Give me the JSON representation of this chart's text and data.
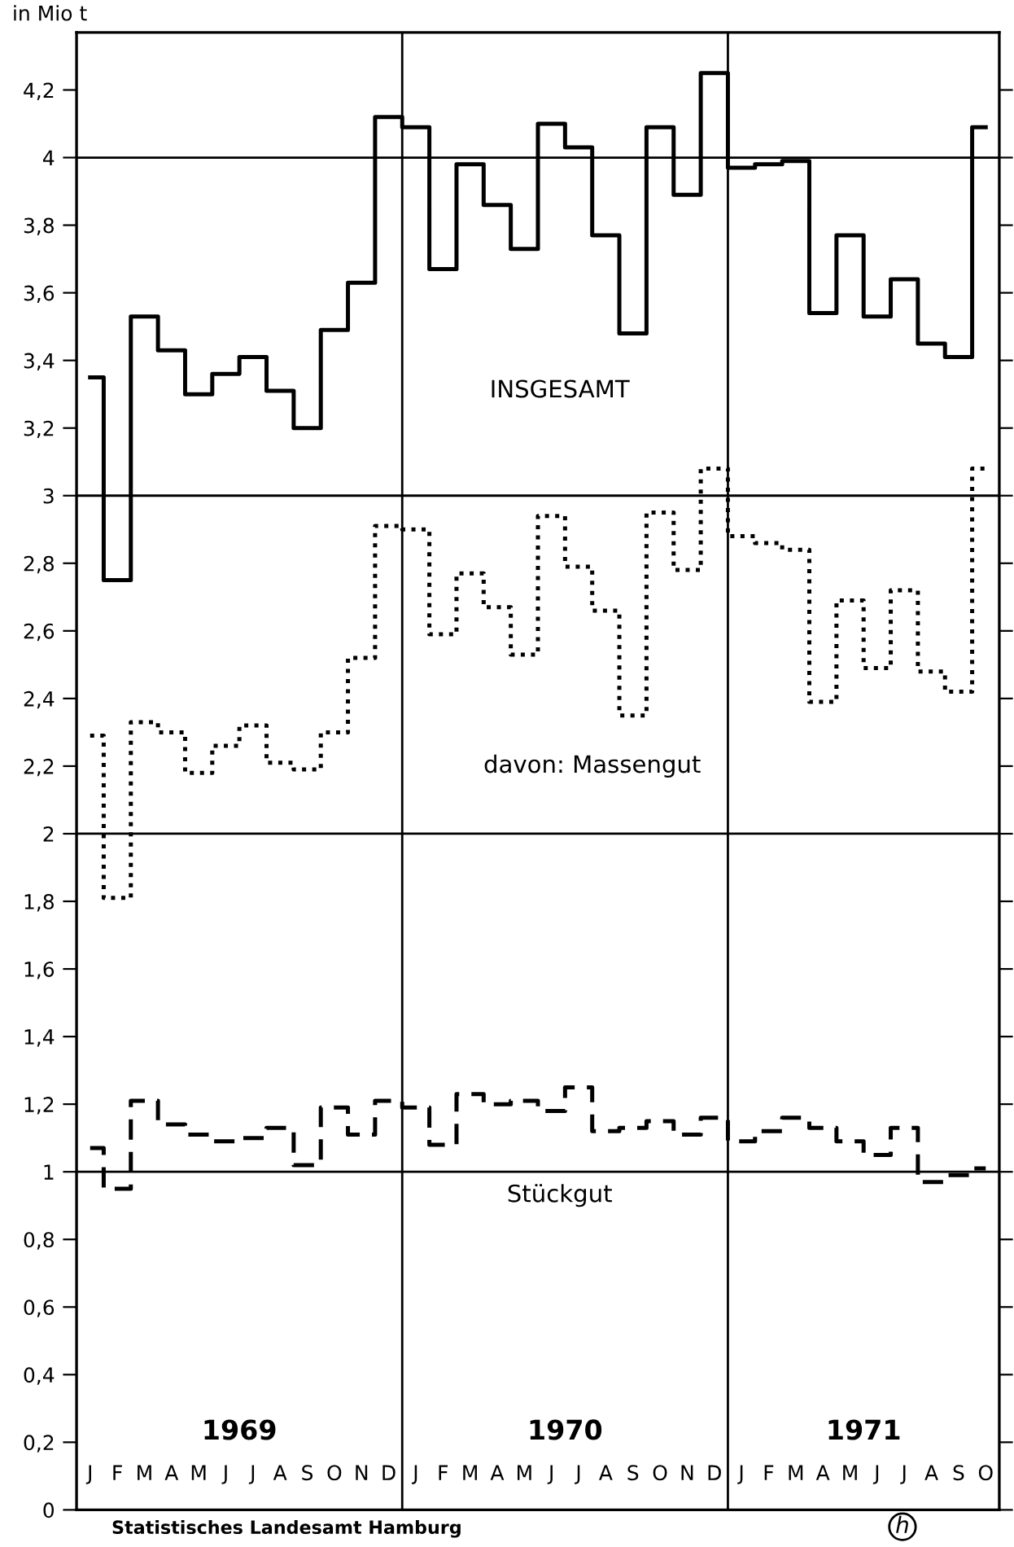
{
  "chart_data": {
    "type": "step",
    "ylabel": "in Mio t",
    "categories": [
      "J",
      "F",
      "M",
      "A",
      "M",
      "J",
      "J",
      "A",
      "S",
      "O",
      "N",
      "D",
      "J",
      "F",
      "M",
      "A",
      "M",
      "J",
      "J",
      "A",
      "S",
      "O",
      "N",
      "D",
      "J",
      "F",
      "M",
      "A",
      "M",
      "J",
      "J",
      "A",
      "S",
      "O"
    ],
    "ylim": [
      0,
      4.37
    ],
    "yticks": [
      0,
      {
        "value": 0.2,
        "label": "0,2"
      },
      {
        "value": 0.4,
        "label": "0,4"
      },
      {
        "value": 0.6,
        "label": "0,6"
      },
      {
        "value": 0.8,
        "label": "0,8"
      },
      1,
      {
        "value": 1.2,
        "label": "1,2"
      },
      {
        "value": 1.4,
        "label": "1,4"
      },
      {
        "value": 1.6,
        "label": "1,6"
      },
      {
        "value": 1.8,
        "label": "1,8"
      },
      2,
      {
        "value": 2.2,
        "label": "2,2"
      },
      {
        "value": 2.4,
        "label": "2,4"
      },
      {
        "value": 2.6,
        "label": "2,6"
      },
      {
        "value": 2.8,
        "label": "2,8"
      },
      3,
      {
        "value": 3.2,
        "label": "3,2"
      },
      {
        "value": 3.4,
        "label": "3,4"
      },
      {
        "value": 3.6,
        "label": "3,6"
      },
      {
        "value": 3.8,
        "label": "3,8"
      },
      4,
      {
        "value": 4.2,
        "label": "4,2"
      }
    ],
    "grid": false,
    "ref_lines": [
      {
        "axis": "y",
        "value": 1,
        "color": "#000000"
      },
      {
        "axis": "y",
        "value": 2,
        "color": "#000000"
      },
      {
        "axis": "y",
        "value": 3,
        "color": "#000000"
      },
      {
        "axis": "y",
        "value": 4,
        "color": "#000000"
      }
    ],
    "series": [
      {
        "name": "INSGESAMT",
        "color": "#000000",
        "line_style": "solid",
        "values": [
          3.35,
          2.75,
          3.53,
          3.43,
          3.3,
          3.36,
          3.41,
          3.31,
          3.2,
          3.49,
          3.63,
          4.12,
          4.09,
          3.67,
          3.98,
          3.86,
          3.73,
          4.1,
          4.03,
          3.77,
          3.48,
          4.09,
          3.89,
          4.25,
          3.97,
          3.98,
          3.99,
          3.54,
          3.77,
          3.53,
          3.64,
          3.45,
          3.41,
          4.09
        ]
      },
      {
        "name": "davon: Massengut",
        "color": "#000000",
        "line_style": "dotted",
        "values": [
          2.29,
          1.81,
          2.33,
          2.3,
          2.18,
          2.26,
          2.32,
          2.21,
          2.19,
          2.3,
          2.52,
          2.91,
          2.9,
          2.59,
          2.77,
          2.67,
          2.53,
          2.94,
          2.79,
          2.66,
          2.35,
          2.95,
          2.78,
          3.08,
          2.88,
          2.86,
          2.84,
          2.39,
          2.69,
          2.49,
          2.72,
          2.48,
          2.42,
          3.08
        ]
      },
      {
        "name": "Stückgut",
        "color": "#000000",
        "line_style": "dashed",
        "values": [
          1.07,
          0.95,
          1.21,
          1.14,
          1.11,
          1.09,
          1.1,
          1.13,
          1.02,
          1.19,
          1.11,
          1.21,
          1.19,
          1.08,
          1.23,
          1.2,
          1.21,
          1.18,
          1.25,
          1.12,
          1.13,
          1.15,
          1.11,
          1.16,
          1.09,
          1.12,
          1.16,
          1.13,
          1.09,
          1.05,
          1.13,
          0.97,
          0.99,
          1.01
        ]
      }
    ],
    "annotations": [
      "1969",
      "1970",
      "1971",
      "Statistisches Landesamt Hamburg",
      "h"
    ]
  }
}
